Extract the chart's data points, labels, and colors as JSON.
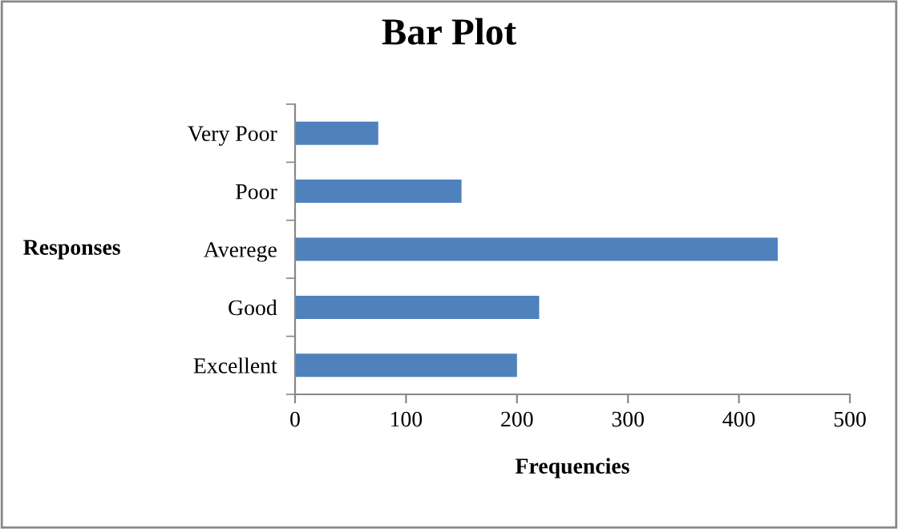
{
  "chart_data": {
    "type": "bar",
    "orientation": "horizontal",
    "title": "Bar Plot",
    "xlabel": "Frequencies",
    "ylabel": "Responses",
    "categories": [
      "Very Poor",
      "Poor",
      "Averege",
      "Good",
      "Excellent"
    ],
    "values": [
      75,
      150,
      435,
      220,
      200
    ],
    "color": "#4f81bd",
    "xlim": [
      0,
      500
    ],
    "xticks": [
      0,
      100,
      200,
      300,
      400,
      500
    ],
    "grid": false,
    "legend": false
  }
}
